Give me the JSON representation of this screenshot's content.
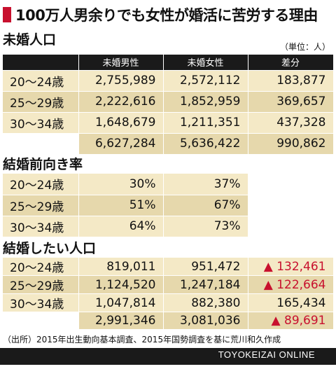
{
  "title": "100万人男余りでも女性が婚活に苦労する理由",
  "unit_note": "（単位：人）",
  "unmarried": {
    "heading": "未婚人口",
    "columns": [
      "未婚男性",
      "未婚女性",
      "差分"
    ],
    "rows": [
      {
        "label": "20〜24歳",
        "male": "2,755,989",
        "female": "2,572,112",
        "diff": "183,877"
      },
      {
        "label": "25〜29歳",
        "male": "2,222,616",
        "female": "1,852,959",
        "diff": "369,657"
      },
      {
        "label": "30〜34歳",
        "male": "1,648,679",
        "female": "1,211,351",
        "diff": "437,328"
      }
    ],
    "total": {
      "label": "",
      "male": "6,627,284",
      "female": "5,636,422",
      "diff": "990,862"
    }
  },
  "marriage_rate": {
    "heading": "結婚前向き率",
    "rows": [
      {
        "label": "20〜24歳",
        "male": "30%",
        "female": "37%"
      },
      {
        "label": "25〜29歳",
        "male": "51%",
        "female": "67%"
      },
      {
        "label": "30〜34歳",
        "male": "64%",
        "female": "73%"
      }
    ]
  },
  "want_marry": {
    "heading": "結婚したい人口",
    "rows": [
      {
        "label": "20〜24歳",
        "male": "819,011",
        "female": "951,472",
        "diff": "▲ 132,461",
        "negative": true
      },
      {
        "label": "25〜29歳",
        "male": "1,124,520",
        "female": "1,247,184",
        "diff": "▲ 122,664",
        "negative": true
      },
      {
        "label": "30〜34歳",
        "male": "1,047,814",
        "female": "882,380",
        "diff": "165,434",
        "negative": false
      }
    ],
    "total": {
      "label": "",
      "male": "2,991,346",
      "female": "3,081,036",
      "diff": "▲ 89,691",
      "negative": true
    }
  },
  "source": "（出所）2015年出生動向基本調査、2015年国勢調査を基に荒川和久作成",
  "brand": "TOYOKEIZAI ONLINE",
  "colors": {
    "accent": "#c8102e",
    "header": "#1a1a1a",
    "row_light": "#f4e9c6",
    "row_dark": "#e6d8ac"
  }
}
